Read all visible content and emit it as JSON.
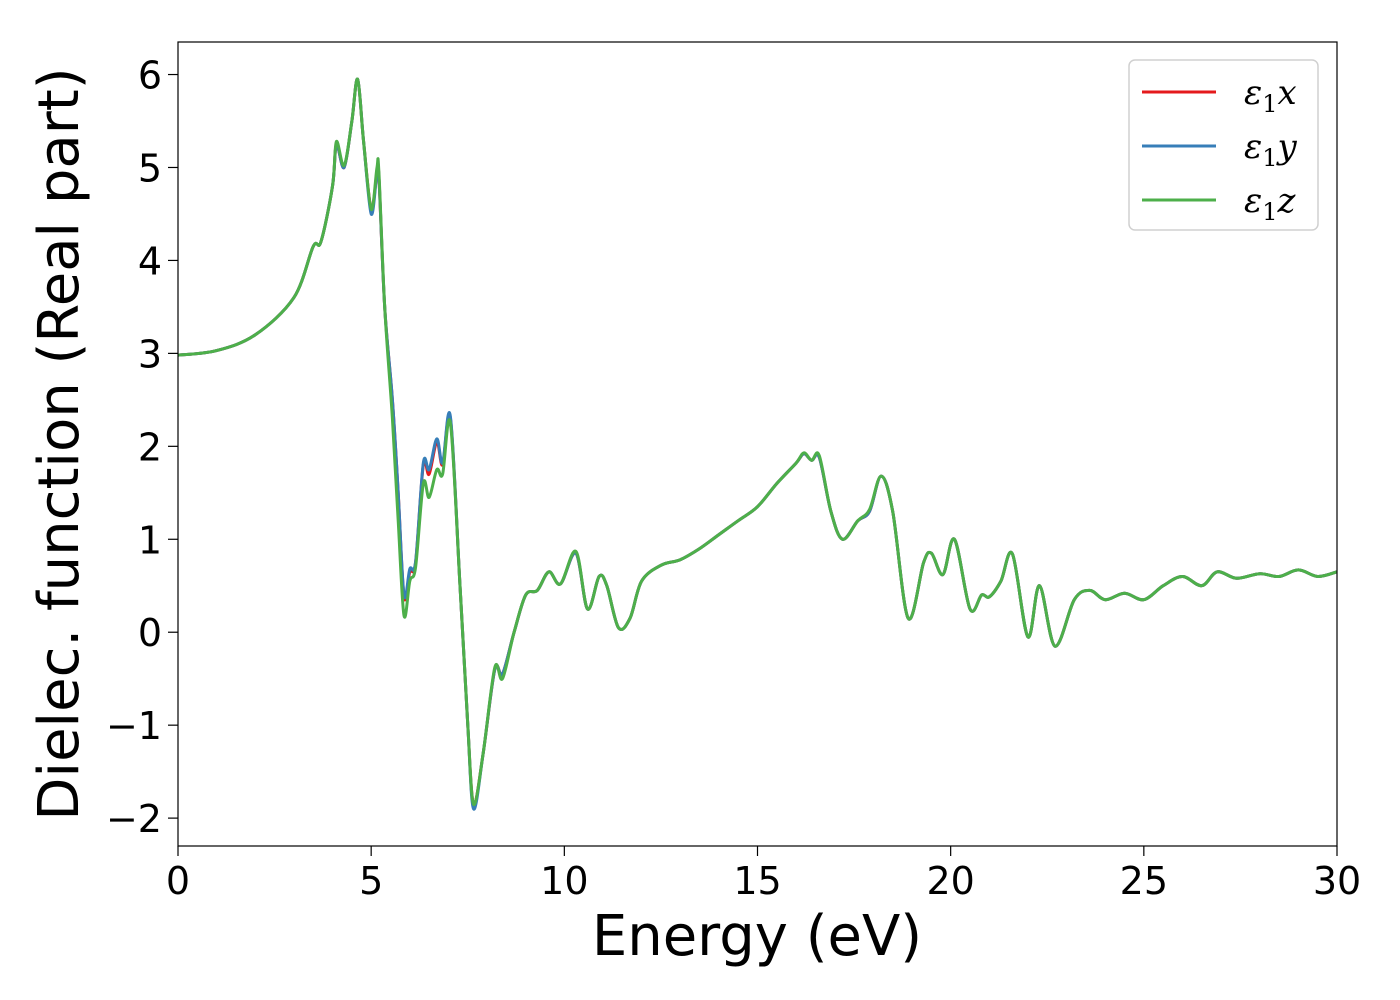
{
  "chart_data": {
    "type": "line",
    "xlabel": "Energy (eV)",
    "ylabel": "Dielec. function (Real part)",
    "xlim": [
      0,
      30
    ],
    "ylim": [
      -2.3,
      6.35
    ],
    "xticks": [
      0,
      5,
      10,
      15,
      20,
      25,
      30
    ],
    "yticks": [
      -2,
      -1,
      0,
      1,
      2,
      3,
      4,
      5,
      6
    ],
    "xtick_labels": [
      "0",
      "5",
      "10",
      "15",
      "20",
      "25",
      "30"
    ],
    "ytick_labels": [
      "−2",
      "−1",
      "0",
      "1",
      "2",
      "3",
      "4",
      "5",
      "6"
    ],
    "grid": false,
    "legend_position": "top-right",
    "colors": {
      "x": "#e41a1c",
      "y": "#377eb8",
      "z": "#4daf4a"
    },
    "legend": [
      {
        "key": "x",
        "sym": "ε",
        "sub": "1",
        "var": "x"
      },
      {
        "key": "y",
        "sym": "ε",
        "sub": "1",
        "var": "y"
      },
      {
        "key": "z",
        "sym": "ε",
        "sub": "1",
        "var": "z"
      }
    ],
    "series": {
      "x": [
        [
          0,
          2.98
        ],
        [
          1,
          3.03
        ],
        [
          2,
          3.2
        ],
        [
          3,
          3.6
        ],
        [
          3.5,
          4.15
        ],
        [
          3.7,
          4.2
        ],
        [
          4,
          4.8
        ],
        [
          4.1,
          5.25
        ],
        [
          4.3,
          5
        ],
        [
          4.5,
          5.5
        ],
        [
          4.65,
          5.95
        ],
        [
          4.8,
          5.3
        ],
        [
          5,
          4.55
        ],
        [
          5.15,
          4.95
        ],
        [
          5.2,
          4.9
        ],
        [
          5.35,
          3.5
        ],
        [
          5.55,
          2.5
        ],
        [
          5.7,
          1.5
        ],
        [
          5.85,
          0.38
        ],
        [
          6.0,
          0.65
        ],
        [
          6.15,
          0.75
        ],
        [
          6.35,
          1.8
        ],
        [
          6.5,
          1.7
        ],
        [
          6.7,
          2.05
        ],
        [
          6.85,
          1.8
        ],
        [
          7.05,
          2.3
        ],
        [
          7.3,
          0.5
        ],
        [
          7.5,
          -1.0
        ],
        [
          7.65,
          -1.85
        ],
        [
          7.9,
          -1.3
        ],
        [
          8.2,
          -0.4
        ],
        [
          8.4,
          -0.45
        ],
        [
          8.7,
          0.0
        ],
        [
          9.0,
          0.4
        ],
        [
          9.3,
          0.45
        ],
        [
          9.6,
          0.65
        ],
        [
          9.9,
          0.52
        ],
        [
          10.3,
          0.85
        ],
        [
          10.6,
          0.25
        ],
        [
          10.9,
          0.6
        ],
        [
          11.1,
          0.5
        ],
        [
          11.4,
          0.05
        ],
        [
          11.7,
          0.15
        ],
        [
          12.0,
          0.55
        ],
        [
          12.5,
          0.72
        ],
        [
          13.0,
          0.78
        ],
        [
          13.5,
          0.9
        ],
        [
          14.0,
          1.05
        ],
        [
          14.5,
          1.2
        ],
        [
          15.0,
          1.35
        ],
        [
          15.5,
          1.6
        ],
        [
          16.0,
          1.82
        ],
        [
          16.2,
          1.92
        ],
        [
          16.4,
          1.85
        ],
        [
          16.6,
          1.88
        ],
        [
          16.9,
          1.3
        ],
        [
          17.2,
          1.0
        ],
        [
          17.6,
          1.2
        ],
        [
          17.9,
          1.3
        ],
        [
          18.2,
          1.68
        ],
        [
          18.5,
          1.3
        ],
        [
          18.9,
          0.15
        ],
        [
          19.3,
          0.75
        ],
        [
          19.5,
          0.85
        ],
        [
          19.8,
          0.62
        ],
        [
          20.1,
          1.0
        ],
        [
          20.5,
          0.25
        ],
        [
          20.8,
          0.4
        ],
        [
          21.0,
          0.38
        ],
        [
          21.3,
          0.55
        ],
        [
          21.6,
          0.84
        ],
        [
          22.0,
          -0.05
        ],
        [
          22.3,
          0.5
        ],
        [
          22.7,
          -0.15
        ],
        [
          23.2,
          0.35
        ],
        [
          23.6,
          0.45
        ],
        [
          24.0,
          0.35
        ],
        [
          24.5,
          0.42
        ],
        [
          25.0,
          0.35
        ],
        [
          25.5,
          0.5
        ],
        [
          26.0,
          0.6
        ],
        [
          26.5,
          0.5
        ],
        [
          26.9,
          0.65
        ],
        [
          27.4,
          0.58
        ],
        [
          28.0,
          0.63
        ],
        [
          28.5,
          0.6
        ],
        [
          29.0,
          0.67
        ],
        [
          29.5,
          0.6
        ],
        [
          30.0,
          0.65
        ]
      ],
      "y": [
        [
          0,
          2.98
        ],
        [
          1,
          3.03
        ],
        [
          2,
          3.2
        ],
        [
          3,
          3.6
        ],
        [
          3.5,
          4.15
        ],
        [
          3.7,
          4.2
        ],
        [
          4,
          4.8
        ],
        [
          4.1,
          5.25
        ],
        [
          4.3,
          5
        ],
        [
          4.5,
          5.5
        ],
        [
          4.65,
          5.95
        ],
        [
          4.8,
          5.3
        ],
        [
          5,
          4.5
        ],
        [
          5.15,
          4.95
        ],
        [
          5.2,
          4.9
        ],
        [
          5.35,
          3.5
        ],
        [
          5.55,
          2.5
        ],
        [
          5.7,
          1.5
        ],
        [
          5.85,
          0.4
        ],
        [
          6.0,
          0.68
        ],
        [
          6.15,
          0.76
        ],
        [
          6.35,
          1.82
        ],
        [
          6.5,
          1.75
        ],
        [
          6.7,
          2.08
        ],
        [
          6.85,
          1.82
        ],
        [
          7.05,
          2.32
        ],
        [
          7.3,
          0.5
        ],
        [
          7.5,
          -1.0
        ],
        [
          7.65,
          -1.9
        ],
        [
          7.9,
          -1.3
        ],
        [
          8.2,
          -0.4
        ],
        [
          8.4,
          -0.45
        ],
        [
          8.7,
          0.0
        ],
        [
          9.0,
          0.4
        ],
        [
          9.3,
          0.45
        ],
        [
          9.6,
          0.65
        ],
        [
          9.9,
          0.52
        ],
        [
          10.3,
          0.85
        ],
        [
          10.6,
          0.25
        ],
        [
          10.9,
          0.6
        ],
        [
          11.1,
          0.5
        ],
        [
          11.4,
          0.05
        ],
        [
          11.7,
          0.15
        ],
        [
          12.0,
          0.55
        ],
        [
          12.5,
          0.72
        ],
        [
          13.0,
          0.78
        ],
        [
          13.5,
          0.9
        ],
        [
          14.0,
          1.05
        ],
        [
          14.5,
          1.2
        ],
        [
          15.0,
          1.35
        ],
        [
          15.5,
          1.6
        ],
        [
          16.0,
          1.82
        ],
        [
          16.2,
          1.92
        ],
        [
          16.4,
          1.85
        ],
        [
          16.6,
          1.88
        ],
        [
          16.9,
          1.3
        ],
        [
          17.2,
          1.0
        ],
        [
          17.6,
          1.2
        ],
        [
          17.9,
          1.3
        ],
        [
          18.2,
          1.68
        ],
        [
          18.5,
          1.3
        ],
        [
          18.9,
          0.15
        ],
        [
          19.3,
          0.75
        ],
        [
          19.5,
          0.85
        ],
        [
          19.8,
          0.62
        ],
        [
          20.1,
          1.0
        ],
        [
          20.5,
          0.25
        ],
        [
          20.8,
          0.4
        ],
        [
          21.0,
          0.38
        ],
        [
          21.3,
          0.55
        ],
        [
          21.6,
          0.84
        ],
        [
          22.0,
          -0.05
        ],
        [
          22.3,
          0.5
        ],
        [
          22.7,
          -0.15
        ],
        [
          23.2,
          0.35
        ],
        [
          23.6,
          0.45
        ],
        [
          24.0,
          0.35
        ],
        [
          24.5,
          0.42
        ],
        [
          25.0,
          0.35
        ],
        [
          25.5,
          0.5
        ],
        [
          26.0,
          0.6
        ],
        [
          26.5,
          0.5
        ],
        [
          26.9,
          0.65
        ],
        [
          27.4,
          0.58
        ],
        [
          28.0,
          0.63
        ],
        [
          28.5,
          0.6
        ],
        [
          29.0,
          0.67
        ],
        [
          29.5,
          0.6
        ],
        [
          30.0,
          0.65
        ]
      ],
      "z": [
        [
          0,
          2.98
        ],
        [
          1,
          3.03
        ],
        [
          2,
          3.2
        ],
        [
          3,
          3.6
        ],
        [
          3.5,
          4.15
        ],
        [
          3.7,
          4.2
        ],
        [
          4,
          4.8
        ],
        [
          4.1,
          5.28
        ],
        [
          4.3,
          5.02
        ],
        [
          4.5,
          5.5
        ],
        [
          4.65,
          5.95
        ],
        [
          4.8,
          5.3
        ],
        [
          5,
          4.55
        ],
        [
          5.15,
          5.0
        ],
        [
          5.2,
          4.95
        ],
        [
          5.35,
          3.5
        ],
        [
          5.55,
          2.3
        ],
        [
          5.7,
          1.2
        ],
        [
          5.85,
          0.18
        ],
        [
          6.0,
          0.55
        ],
        [
          6.15,
          0.7
        ],
        [
          6.35,
          1.6
        ],
        [
          6.5,
          1.45
        ],
        [
          6.7,
          1.75
        ],
        [
          6.85,
          1.7
        ],
        [
          7.05,
          2.25
        ],
        [
          7.3,
          0.5
        ],
        [
          7.5,
          -1.0
        ],
        [
          7.65,
          -1.85
        ],
        [
          7.9,
          -1.3
        ],
        [
          8.2,
          -0.38
        ],
        [
          8.4,
          -0.5
        ],
        [
          8.7,
          0.0
        ],
        [
          9.0,
          0.4
        ],
        [
          9.3,
          0.45
        ],
        [
          9.6,
          0.65
        ],
        [
          9.9,
          0.52
        ],
        [
          10.3,
          0.87
        ],
        [
          10.6,
          0.25
        ],
        [
          10.9,
          0.6
        ],
        [
          11.1,
          0.5
        ],
        [
          11.4,
          0.05
        ],
        [
          11.7,
          0.15
        ],
        [
          12.0,
          0.55
        ],
        [
          12.5,
          0.72
        ],
        [
          13.0,
          0.78
        ],
        [
          13.5,
          0.9
        ],
        [
          14.0,
          1.05
        ],
        [
          14.5,
          1.2
        ],
        [
          15.0,
          1.35
        ],
        [
          15.5,
          1.6
        ],
        [
          16.0,
          1.82
        ],
        [
          16.2,
          1.93
        ],
        [
          16.4,
          1.85
        ],
        [
          16.6,
          1.9
        ],
        [
          16.9,
          1.3
        ],
        [
          17.2,
          1.0
        ],
        [
          17.6,
          1.2
        ],
        [
          17.9,
          1.32
        ],
        [
          18.2,
          1.68
        ],
        [
          18.5,
          1.3
        ],
        [
          18.9,
          0.15
        ],
        [
          19.3,
          0.75
        ],
        [
          19.5,
          0.85
        ],
        [
          19.8,
          0.62
        ],
        [
          20.1,
          1.0
        ],
        [
          20.5,
          0.25
        ],
        [
          20.8,
          0.4
        ],
        [
          21.0,
          0.38
        ],
        [
          21.3,
          0.55
        ],
        [
          21.6,
          0.84
        ],
        [
          22.0,
          -0.05
        ],
        [
          22.3,
          0.5
        ],
        [
          22.7,
          -0.15
        ],
        [
          23.2,
          0.35
        ],
        [
          23.6,
          0.45
        ],
        [
          24.0,
          0.35
        ],
        [
          24.5,
          0.42
        ],
        [
          25.0,
          0.35
        ],
        [
          25.5,
          0.5
        ],
        [
          26.0,
          0.6
        ],
        [
          26.5,
          0.5
        ],
        [
          26.9,
          0.65
        ],
        [
          27.4,
          0.58
        ],
        [
          28.0,
          0.63
        ],
        [
          28.5,
          0.6
        ],
        [
          29.0,
          0.67
        ],
        [
          29.5,
          0.6
        ],
        [
          30.0,
          0.65
        ]
      ]
    }
  }
}
